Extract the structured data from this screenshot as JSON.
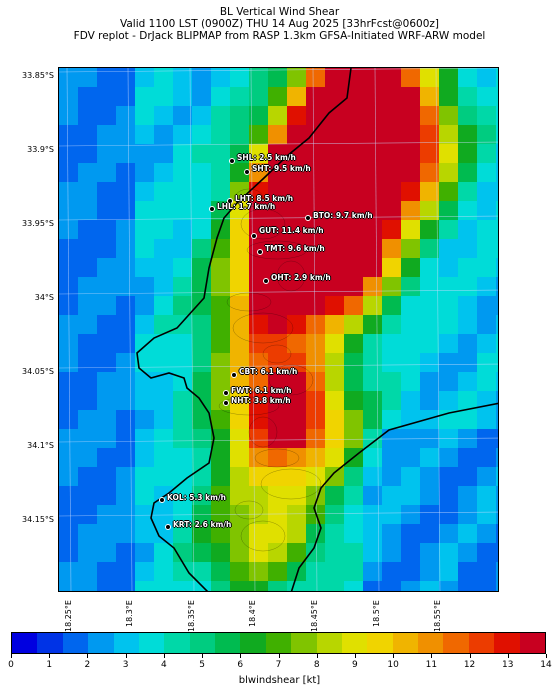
{
  "title": {
    "line1": "BL Vertical Wind Shear",
    "line2": "Valid 1100 LST (0900Z) THU 14 Aug 2025 [33hrFcst@0600z]",
    "line3": "FDV replot - DrJack BLIPMAP from RASP 1.3km GFSA-Initiated WRF-ARW model"
  },
  "lat_labels": [
    "33.85°S",
    "33.9°S",
    "33.95°S",
    "34°S",
    "34.05°S",
    "34.1°S",
    "34.15°S"
  ],
  "lon_labels": [
    "18.25°E",
    "18.3°E",
    "18.35°E",
    "18.4°E",
    "18.45°E",
    "18.5°E",
    "18.55°E"
  ],
  "stations": [
    {
      "code": "SHL",
      "label": "SHL: 2.5 km/h",
      "value_kmh": 2.5
    },
    {
      "code": "SHT",
      "label": "SHT: 9.5 km/h",
      "value_kmh": 9.5
    },
    {
      "code": "LHT",
      "label": "LHT: 8.5 km/h",
      "value_kmh": 8.5
    },
    {
      "code": "LHL",
      "label": "LHL: 1.7 km/h",
      "value_kmh": 1.7
    },
    {
      "code": "BTO",
      "label": "BTO: 9.7 km/h",
      "value_kmh": 9.7
    },
    {
      "code": "GUT",
      "label": "GUT: 11.4 km/h",
      "value_kmh": 11.4
    },
    {
      "code": "TMT",
      "label": "TMT: 9.6 km/h",
      "value_kmh": 9.6
    },
    {
      "code": "OHT",
      "label": "OHT: 2.9 km/h",
      "value_kmh": 2.9
    },
    {
      "code": "CBT",
      "label": "CBT: 6.1 km/h",
      "value_kmh": 6.1
    },
    {
      "code": "FWT",
      "label": "FWT: 6.1 km/h",
      "value_kmh": 6.1
    },
    {
      "code": "NHT",
      "label": "NHT: 3.8 km/h",
      "value_kmh": 3.8
    },
    {
      "code": "KOL",
      "label": "KOL: 5.3 km/h",
      "value_kmh": 5.3
    },
    {
      "code": "KRT",
      "label": "KRT: 2.6 km/h",
      "value_kmh": 2.6
    }
  ],
  "colorbar": {
    "label": "blwindshear [kt]",
    "ticks": [
      "0",
      "1",
      "2",
      "3",
      "4",
      "5",
      "6",
      "7",
      "8",
      "9",
      "10",
      "11",
      "12",
      "13",
      "14"
    ],
    "min": 0,
    "max": 14,
    "colors": [
      "#0000e0",
      "#0033e6",
      "#0066ee",
      "#0099f0",
      "#00c3ee",
      "#00dcd8",
      "#00d8a8",
      "#00cc80",
      "#00bb50",
      "#10aa20",
      "#40b000",
      "#80c400",
      "#b8d600",
      "#e0e000",
      "#f0d400",
      "#f0b400",
      "#f09000",
      "#f06800",
      "#ec3c00",
      "#e01000",
      "#c80020"
    ]
  },
  "colors": {
    "coastline": "#000000",
    "sea_shallow": "#2a7fe0"
  }
}
